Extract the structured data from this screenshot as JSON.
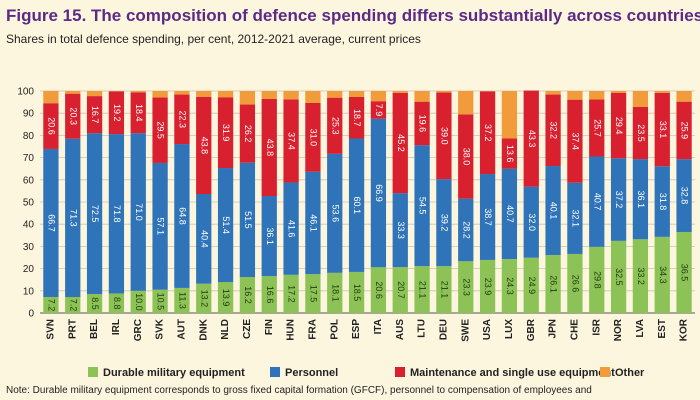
{
  "figure": {
    "title": "Figure 15. The composition of defence spending differs substantially across countries",
    "subtitle": "Shares in total defence spending, per cent, 2012-2021 average, current prices",
    "note": "Note: Durable military equipment corresponds to gross fixed capital formation (GFCF), personnel to compensation of employees and"
  },
  "chart_data": {
    "type": "bar",
    "stacked": true,
    "ylim": [
      0,
      100
    ],
    "yticks": [
      0,
      10,
      20,
      30,
      40,
      50,
      60,
      70,
      80,
      90,
      100
    ],
    "categories": [
      "SVN",
      "PRT",
      "BEL",
      "IRL",
      "GRC",
      "SVK",
      "AUT",
      "DNK",
      "NLD",
      "CZE",
      "FIN",
      "HUN",
      "FRA",
      "POL",
      "ESP",
      "ITA",
      "AUS",
      "LTU",
      "DEU",
      "SWE",
      "USA",
      "LUX",
      "GBR",
      "JPN",
      "CHE",
      "ISR",
      "NOR",
      "LVA",
      "EST",
      "KOR"
    ],
    "series": [
      {
        "name": "Durable military equipment",
        "color": "#8dc356",
        "values": [
          7.2,
          7.2,
          8.5,
          8.8,
          10.0,
          10.5,
          11.3,
          13.2,
          13.9,
          16.2,
          16.6,
          17.2,
          17.5,
          18.1,
          18.5,
          20.6,
          20.7,
          21.1,
          21.1,
          23.3,
          23.9,
          24.3,
          24.9,
          26.1,
          26.6,
          29.8,
          32.5,
          33.2,
          34.3,
          36.5
        ],
        "labels": [
          "7.2",
          "7.2",
          "8.5",
          "8.8",
          "10.0",
          "10.5",
          "11.3",
          "13.2",
          "13.9",
          "16.2",
          "16.6",
          "17.2",
          "17.5",
          "18.1",
          "18.5",
          "20.6",
          "20.7",
          "21.1",
          "21.1",
          "23.3",
          "23.9",
          "24.3",
          "24.9",
          "26.1",
          "26.6",
          "29.8",
          "32.5",
          "33.2",
          "34.3",
          "36.5"
        ]
      },
      {
        "name": "Personnel",
        "color": "#2f73b8",
        "values": [
          66.7,
          71.3,
          72.5,
          71.8,
          71.0,
          57.1,
          64.8,
          40.4,
          51.4,
          51.5,
          36.1,
          41.6,
          46.1,
          53.6,
          60.1,
          66.9,
          33.3,
          54.5,
          39.2,
          28.2,
          38.7,
          40.7,
          32.0,
          40.1,
          32.1,
          40.7,
          37.2,
          36.1,
          31.8,
          32.8
        ],
        "labels": [
          "66.7",
          "71.3",
          "72.5",
          "71.8",
          "71.0",
          "57.1",
          "64.8",
          "40.4",
          "51.4",
          "51.5",
          "36.1",
          "41.6",
          "46.1",
          "53.6",
          "60.1",
          "66.9",
          "33.3",
          "54.5",
          "39.2",
          "28.2",
          "38.7",
          "40.7",
          "32.0",
          "40.1",
          "32.1",
          "40.7",
          "37.2",
          "36.1",
          "31.8",
          "32.8"
        ]
      },
      {
        "name": "Maintenance and single use equipment",
        "color": "#d9202f",
        "values": [
          20.6,
          20.3,
          16.7,
          19.2,
          18.4,
          29.5,
          22.3,
          43.8,
          31.9,
          26.2,
          43.8,
          37.4,
          31.0,
          25.3,
          18.7,
          7.9,
          45.2,
          19.6,
          39.0,
          38.0,
          37.2,
          13.6,
          43.3,
          32.2,
          37.4,
          25.7,
          29.4,
          23.5,
          33.1,
          25.9
        ],
        "labels": [
          "20.6",
          "20.3",
          "16.7",
          "19.2",
          "18.4",
          "29.5",
          "22.3",
          "43.8",
          "31.9",
          "26.2",
          "43.8",
          "37.4",
          "31.0",
          "25.3",
          "18.7",
          "7.9",
          "45.2",
          "19.6",
          "39.0",
          "38.0",
          "37.2",
          "13.6",
          "43.3",
          "32.2",
          "37.4",
          "25.7",
          "29.4",
          "23.5",
          "33.1",
          "25.9"
        ]
      },
      {
        "name": "Other",
        "color": "#f29b3a",
        "values": [
          5.5,
          1.2,
          2.3,
          0.2,
          0.6,
          2.9,
          1.6,
          2.6,
          2.8,
          6.1,
          3.5,
          3.8,
          5.4,
          3.0,
          2.7,
          4.6,
          0.8,
          4.8,
          0.7,
          10.5,
          0.2,
          21.4,
          0.0,
          1.6,
          3.9,
          3.8,
          0.9,
          7.2,
          0.8,
          4.8
        ],
        "labels": [
          "",
          "",
          "",
          "",
          "",
          "",
          "",
          "",
          "",
          "",
          "",
          "",
          "",
          "",
          "",
          "",
          "",
          "",
          "",
          "",
          "",
          "",
          "",
          "",
          "",
          "",
          "",
          "",
          "",
          ""
        ]
      }
    ]
  }
}
